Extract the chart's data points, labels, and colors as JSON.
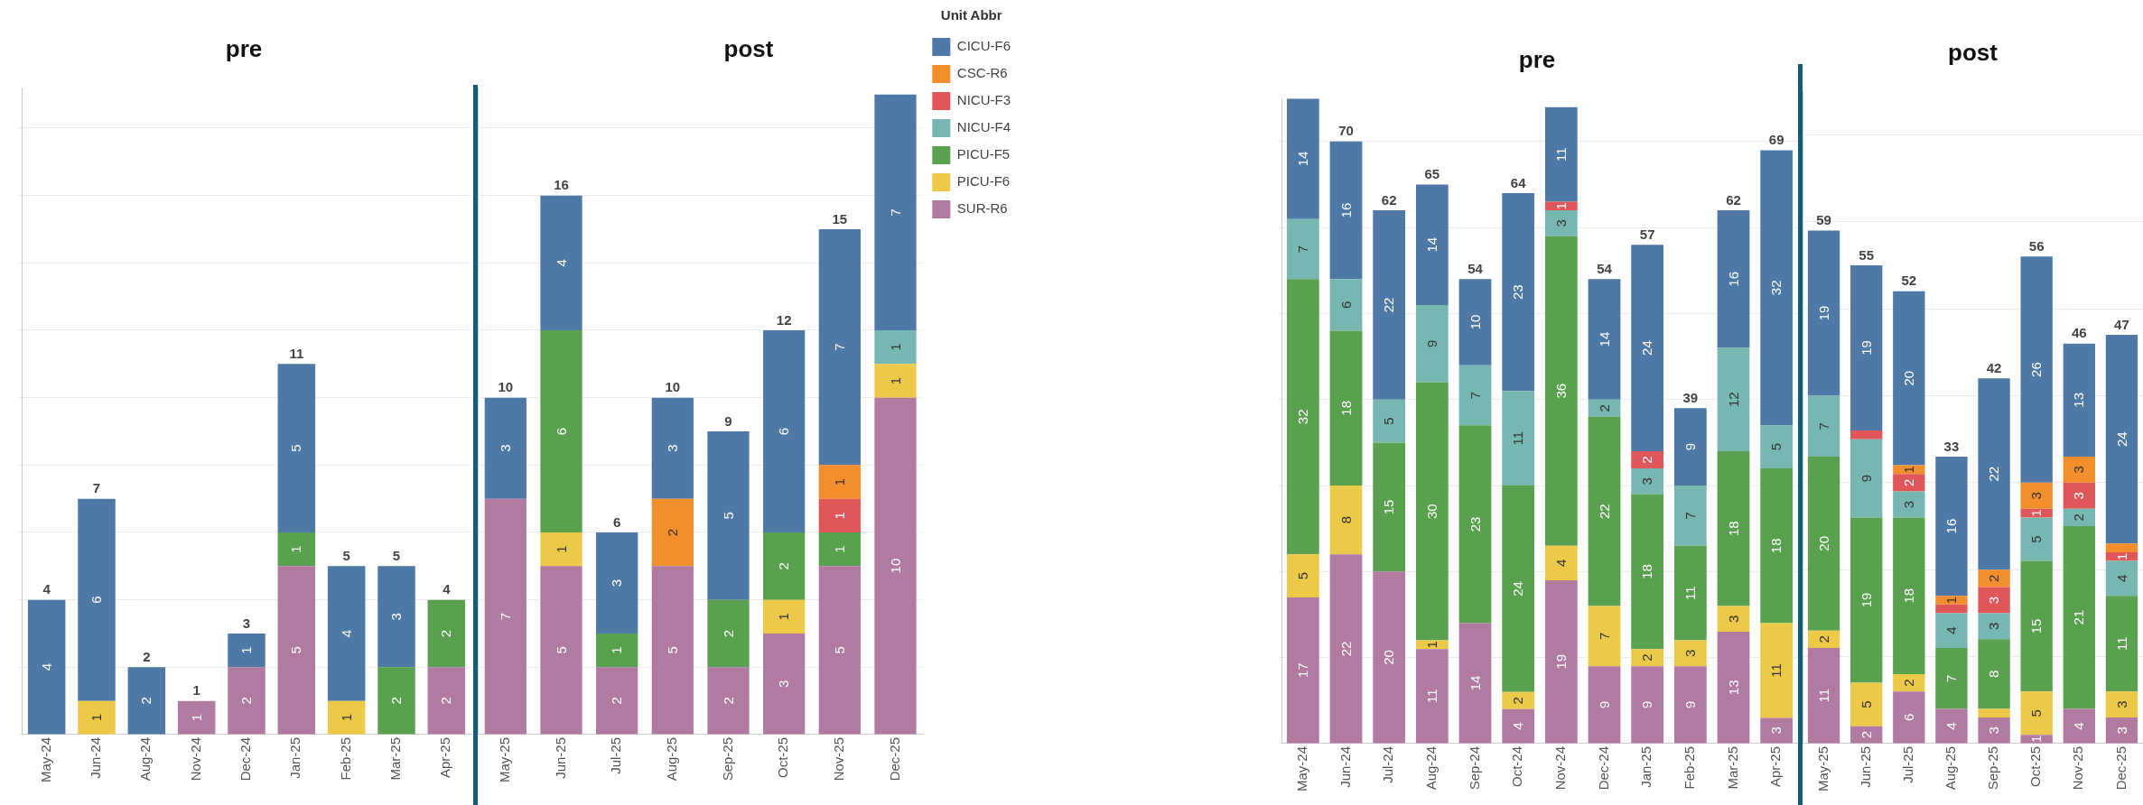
{
  "chart_data": [
    {
      "type": "bar",
      "title": "pre",
      "stacked": true,
      "grid": "y",
      "tick_labels": "x",
      "data_labels": true,
      "ylim": [
        0,
        19.2
      ],
      "yticks": [
        {
          "value": 0,
          "label": null
        },
        {
          "value": 2,
          "label": null
        },
        {
          "value": 4,
          "label": null
        },
        {
          "value": 6,
          "label": null
        },
        {
          "value": 8,
          "label": null
        },
        {
          "value": 10,
          "label": null
        },
        {
          "value": 12,
          "label": null
        },
        {
          "value": 14,
          "label": null
        },
        {
          "value": 16,
          "label": null
        },
        {
          "value": 18,
          "label": null
        }
      ],
      "categories": [
        "May-24",
        "Jun-24",
        "Aug-24",
        "Nov-24",
        "Dec-24",
        "Jan-25",
        "Feb-25",
        "Mar-25",
        "Apr-25"
      ],
      "totals": [
        "4",
        "7",
        "2",
        "1",
        "3",
        "11",
        "5",
        "5",
        "4"
      ],
      "series": [
        {
          "color": "#b07aa1",
          "values": [
            null,
            null,
            null,
            1,
            2,
            5,
            null,
            null,
            2
          ]
        },
        {
          "color": "#edc948",
          "values": [
            null,
            1,
            null,
            null,
            null,
            null,
            1,
            null,
            null
          ]
        },
        {
          "color": "#59a14f",
          "values": [
            null,
            null,
            null,
            null,
            null,
            1,
            null,
            2,
            2
          ]
        },
        {
          "color": "#4e79a7",
          "values": [
            4,
            6,
            2,
            null,
            1,
            5,
            4,
            3,
            null
          ]
        }
      ]
    },
    {
      "type": "bar",
      "title": "post",
      "stacked": true,
      "grid": "y",
      "tick_labels": "x",
      "data_labels": true,
      "legend": "right",
      "legend_title": "Unit Abbr",
      "ylim": [
        0,
        19.2
      ],
      "yticks": [
        {
          "value": 0,
          "label": null
        },
        {
          "value": 2,
          "label": null
        },
        {
          "value": 4,
          "label": null
        },
        {
          "value": 6,
          "label": null
        },
        {
          "value": 8,
          "label": null
        },
        {
          "value": 10,
          "label": null
        },
        {
          "value": 12,
          "label": null
        },
        {
          "value": 14,
          "label": null
        },
        {
          "value": 16,
          "label": null
        },
        {
          "value": 18,
          "label": null
        }
      ],
      "categories": [
        "May-25",
        "Jun-25",
        "Jul-25",
        "Aug-25",
        "Sep-25",
        "Oct-25",
        "Nov-25",
        "Dec-25"
      ],
      "totals": [
        "10",
        "16",
        "6",
        "10",
        "9",
        "12",
        "15",
        null
      ],
      "series": [
        {
          "name": "SUR-R6",
          "color": "#b07aa1",
          "values": [
            7,
            5,
            2,
            5,
            2,
            3,
            5,
            10
          ]
        },
        {
          "name": "PICU-F6",
          "color": "#edc948",
          "values": [
            null,
            1,
            null,
            null,
            null,
            1,
            null,
            1
          ]
        },
        {
          "name": "PICU-F5",
          "color": "#59a14f",
          "values": [
            null,
            6,
            1,
            null,
            2,
            2,
            1,
            null
          ]
        },
        {
          "name": "NICU-F4",
          "color": "#76b7b2",
          "values": [
            null,
            null,
            null,
            null,
            null,
            null,
            null,
            1
          ]
        },
        {
          "name": "NICU-F3",
          "color": "#e15759",
          "values": [
            null,
            null,
            null,
            null,
            null,
            null,
            1,
            null
          ]
        },
        {
          "name": "CSC-R6",
          "color": "#f28e2b",
          "values": [
            null,
            null,
            null,
            2,
            null,
            null,
            1,
            null
          ]
        },
        {
          "name": "CICU-F6",
          "color": "#4e79a7",
          "values": [
            3,
            4,
            3,
            3,
            5,
            6,
            7,
            7
          ]
        }
      ]
    },
    {
      "type": "bar",
      "title": "pre",
      "stacked": true,
      "grid": "y",
      "tick_labels": "x",
      "data_labels": true,
      "ylim": [
        0,
        75
      ],
      "yticks": [
        {
          "value": 0,
          "label": null
        },
        {
          "value": 10,
          "label": null
        },
        {
          "value": 20,
          "label": null
        },
        {
          "value": 30,
          "label": null
        },
        {
          "value": 40,
          "label": null
        },
        {
          "value": 50,
          "label": null
        },
        {
          "value": 60,
          "label": null
        },
        {
          "value": 70,
          "label": null
        }
      ],
      "categories": [
        "May-24",
        "Jun-24",
        "Jul-24",
        "Aug-24",
        "Sep-24",
        "Oct-24",
        "Nov-24",
        "Dec-24",
        "Jan-25",
        "Feb-25",
        "Mar-25",
        "Apr-25"
      ],
      "totals": [
        null,
        "70",
        "62",
        "65",
        "54",
        "64",
        null,
        "54",
        "57",
        "39",
        "62",
        "69"
      ],
      "series": [
        {
          "color": "#b07aa1",
          "values": [
            17,
            22,
            20,
            11,
            14,
            4,
            19,
            9,
            9,
            9,
            13,
            3
          ]
        },
        {
          "color": "#edc948",
          "values": [
            5,
            8,
            null,
            1,
            null,
            2,
            4,
            7,
            2,
            3,
            3,
            11
          ]
        },
        {
          "color": "#59a14f",
          "values": [
            32,
            18,
            15,
            30,
            23,
            24,
            36,
            22,
            18,
            11,
            18,
            18
          ]
        },
        {
          "color": "#76b7b2",
          "values": [
            7,
            6,
            5,
            9,
            7,
            11,
            3,
            2,
            3,
            7,
            12,
            5
          ]
        },
        {
          "color": "#e15759",
          "values": [
            null,
            null,
            null,
            null,
            null,
            null,
            1,
            null,
            2,
            null,
            null,
            null
          ]
        },
        {
          "color": "#4e79a7",
          "values": [
            14,
            16,
            22,
            14,
            10,
            23,
            11,
            14,
            24,
            9,
            16,
            32
          ]
        }
      ]
    },
    {
      "type": "bar",
      "title": "post",
      "stacked": true,
      "grid": "y",
      "tick_labels": "x",
      "ylim": [
        0,
        75
      ],
      "yticks": [
        {
          "value": 0,
          "label": null
        },
        {
          "value": 10,
          "label": null
        },
        {
          "value": 20,
          "label": null
        },
        {
          "value": 30,
          "label": null
        },
        {
          "value": 40,
          "label": null
        },
        {
          "value": 50,
          "label": null
        },
        {
          "value": 60,
          "label": null
        },
        {
          "value": 70,
          "label": null
        }
      ],
      "categories": [
        "May-25",
        "Jun-25",
        "Jul-25",
        "Aug-25",
        "Sep-25",
        "Oct-25",
        "Nov-25",
        "Dec-25"
      ],
      "totals": [
        "59",
        "55",
        "52",
        "33",
        "42",
        "56",
        "46",
        "47"
      ],
      "series": [
        {
          "color": "#b07aa1",
          "values": [
            11,
            2,
            6,
            4,
            3,
            1,
            4,
            3
          ],
          "value_labels": [
            "11",
            "2",
            "6",
            "4",
            "3",
            "1",
            "4",
            "3"
          ]
        },
        {
          "color": "#edc948",
          "values": [
            2,
            5,
            2,
            null,
            1,
            5,
            null,
            3
          ],
          "value_labels": [
            "2",
            "5",
            "2",
            null,
            null,
            "5",
            null,
            "3"
          ]
        },
        {
          "color": "#59a14f",
          "values": [
            20,
            19,
            18,
            7,
            8,
            15,
            21,
            11
          ],
          "value_labels": [
            "20",
            "19",
            "18",
            "7",
            "8",
            "15",
            "21",
            "11"
          ]
        },
        {
          "color": "#76b7b2",
          "values": [
            7,
            9,
            3,
            4,
            3,
            5,
            2,
            4
          ],
          "value_labels": [
            "7",
            "9",
            "3",
            "4",
            "3",
            "5",
            "2",
            "4"
          ]
        },
        {
          "color": "#e15759",
          "values": [
            null,
            1,
            2,
            1,
            3,
            1,
            3,
            1
          ],
          "value_labels": [
            null,
            null,
            "2",
            null,
            "3",
            "1",
            "3",
            "1"
          ]
        },
        {
          "color": "#f28e2b",
          "values": [
            null,
            null,
            1,
            1,
            2,
            3,
            3,
            1
          ],
          "value_labels": [
            null,
            null,
            "1",
            "1",
            "2",
            "3",
            "3",
            null
          ]
        },
        {
          "color": "#4e79a7",
          "values": [
            19,
            19,
            20,
            16,
            22,
            26,
            13,
            24
          ],
          "value_labels": [
            "19",
            "19",
            "20",
            "16",
            "22",
            "26",
            "13",
            "24"
          ]
        }
      ]
    }
  ]
}
